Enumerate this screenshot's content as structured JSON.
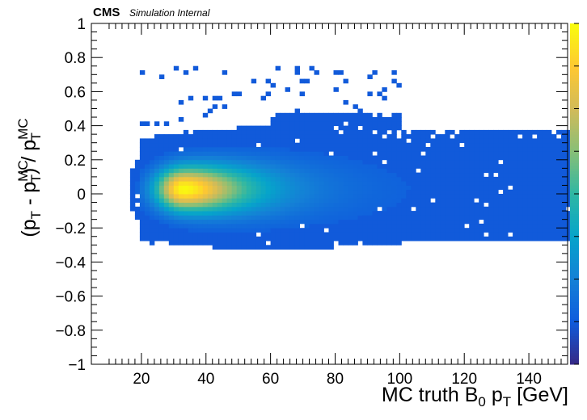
{
  "header": {
    "experiment": "CMS",
    "status": "Simulation Internal"
  },
  "chart_data": {
    "type": "heatmap",
    "title": "",
    "xlabel": {
      "main": "MC truth B",
      "sub": "0",
      "mid": " p",
      "sub2": "T",
      "tail": " [GeV]"
    },
    "ylabel": {
      "part1": "(p",
      "sub1": "T",
      "part2": " - p",
      "sup2": "MC",
      "sub2": "T",
      "part3": ") / p",
      "sup3": "MC",
      "sub3": "T"
    },
    "xlim": [
      4.5,
      152
    ],
    "ylim": [
      -1,
      1
    ],
    "x_ticks": [
      20,
      40,
      60,
      80,
      100,
      120,
      140
    ],
    "x_tick_labels": [
      "20",
      "40",
      "60",
      "80",
      "100",
      "120",
      "140"
    ],
    "y_ticks": [
      -1,
      -0.8,
      -0.6,
      -0.4,
      -0.2,
      0,
      0.2,
      0.4,
      0.6,
      0.8,
      1
    ],
    "y_tick_labels": [
      "−1",
      "−0.8",
      "−0.6",
      "−0.4",
      "−0.2",
      "0",
      "0.2",
      "0.4",
      "0.6",
      "0.8",
      "1"
    ],
    "bin_width_x": 1.5,
    "bin_width_y": 0.025,
    "peak": {
      "x": 33,
      "y": 0.03,
      "relative_density": 1.0
    },
    "core": {
      "x_start": 16.5,
      "x_end": 100,
      "y_width_at_low_pt": 0.15,
      "y_width_at_high_pt": 0.2,
      "mean_offset_y": 0.03
    },
    "tail_regions": [
      {
        "x": [
          100,
          152
        ],
        "y": [
          -0.2,
          0.38
        ]
      },
      {
        "x": [
          77,
          100
        ],
        "y": [
          -0.3,
          0.48
        ]
      }
    ],
    "colorbar": {
      "palette": [
        "#352a87",
        "#0f5cdd",
        "#1481d6",
        "#06a4ca",
        "#2eb7a4",
        "#87bf77",
        "#d1bb59",
        "#fec832",
        "#f9fb0e"
      ],
      "scale": "linear"
    },
    "grid": false,
    "legend": "none"
  }
}
